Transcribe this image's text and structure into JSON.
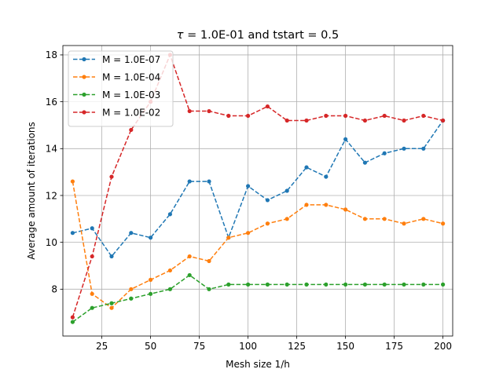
{
  "chart_data": {
    "type": "line",
    "title_parts": {
      "symbol": "τ",
      "rest": " = 1.0E-01 and tstart = 0.5"
    },
    "xlabel": "Mesh size 1/h",
    "ylabel": "Average amount of iterations",
    "xlim": [
      5,
      205
    ],
    "ylim": [
      6.0,
      18.4
    ],
    "xticks": [
      25,
      50,
      75,
      100,
      125,
      150,
      175,
      200
    ],
    "yticks": [
      8,
      10,
      12,
      14,
      16,
      18
    ],
    "grid": true,
    "legend_position": "upper-left",
    "x": [
      10,
      20,
      30,
      40,
      50,
      60,
      70,
      80,
      90,
      100,
      110,
      120,
      130,
      140,
      150,
      160,
      170,
      180,
      190,
      200
    ],
    "series": [
      {
        "name": "M = 1.0E-07",
        "color": "#1f77b4",
        "values": [
          10.4,
          10.6,
          9.4,
          10.4,
          10.2,
          11.2,
          12.6,
          12.6,
          10.2,
          12.4,
          11.8,
          12.2,
          13.2,
          12.8,
          14.4,
          13.4,
          13.8,
          14.0,
          14.0,
          15.2
        ]
      },
      {
        "name": "M = 1.0E-04",
        "color": "#ff7f0e",
        "values": [
          12.6,
          7.8,
          7.2,
          8.0,
          8.4,
          8.8,
          9.4,
          9.2,
          10.2,
          10.4,
          10.8,
          11.0,
          11.6,
          11.6,
          11.4,
          11.0,
          11.0,
          10.8,
          11.0,
          10.8
        ]
      },
      {
        "name": "M = 1.0E-03",
        "color": "#2ca02c",
        "values": [
          6.6,
          7.2,
          7.4,
          7.6,
          7.8,
          8.0,
          8.6,
          8.0,
          8.2,
          8.2,
          8.2,
          8.2,
          8.2,
          8.2,
          8.2,
          8.2,
          8.2,
          8.2,
          8.2,
          8.2
        ]
      },
      {
        "name": "M = 1.0E-02",
        "color": "#d62728",
        "values": [
          6.8,
          9.4,
          12.8,
          14.8,
          16.0,
          18.0,
          15.6,
          15.6,
          15.4,
          15.4,
          15.8,
          15.2,
          15.2,
          15.4,
          15.4,
          15.2,
          15.4,
          15.2,
          15.4,
          15.2
        ]
      }
    ]
  }
}
